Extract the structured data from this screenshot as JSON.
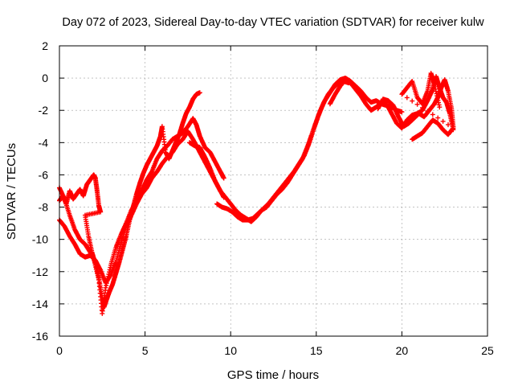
{
  "chart_data": {
    "type": "scatter",
    "title": "Day 072 of 2023, Sidereal Day-to-day VTEC variation (SDTVAR) for receiver kulw",
    "xlabel": "GPS time / hours",
    "ylabel": "SDTVAR / TECUs",
    "xlim": [
      0,
      25
    ],
    "ylim": [
      -16,
      2
    ],
    "x_ticks": [
      0,
      5,
      10,
      15,
      20,
      25
    ],
    "y_ticks": [
      -16,
      -14,
      -12,
      -10,
      -8,
      -6,
      -4,
      -2,
      0,
      2
    ],
    "grid": true,
    "legend": "none",
    "marker": "plus",
    "color": "#ff0000",
    "series": [
      {
        "points": [
          [
            0.0,
            -7.6
          ],
          [
            0.2,
            -7.3
          ],
          [
            0.4,
            -7.8
          ],
          [
            0.6,
            -7.0
          ],
          [
            0.8,
            -7.5
          ],
          [
            1.0,
            -7.2
          ],
          [
            1.2,
            -6.9
          ],
          [
            1.4,
            -7.3
          ],
          [
            1.6,
            -6.6
          ],
          [
            1.8,
            -6.3
          ],
          [
            2.0,
            -6.0
          ],
          [
            2.1,
            -6.2
          ],
          [
            2.2,
            -7.0
          ],
          [
            2.3,
            -7.9
          ],
          [
            2.4,
            -8.3
          ],
          [
            1.5,
            -8.5
          ],
          [
            1.7,
            -9.8
          ],
          [
            1.9,
            -10.8
          ],
          [
            2.1,
            -11.5
          ],
          [
            2.3,
            -12.4
          ],
          [
            2.5,
            -13.6
          ],
          [
            2.6,
            -14.2
          ],
          [
            2.7,
            -13.9
          ],
          [
            2.9,
            -13.3
          ],
          [
            3.1,
            -12.8
          ],
          [
            3.3,
            -12.1
          ],
          [
            3.5,
            -11.4
          ],
          [
            3.7,
            -10.6
          ],
          [
            3.9,
            -9.8
          ],
          [
            4.1,
            -8.8
          ],
          [
            4.3,
            -8.0
          ],
          [
            4.5,
            -7.2
          ],
          [
            4.7,
            -6.5
          ],
          [
            4.9,
            -5.9
          ],
          [
            5.1,
            -5.4
          ],
          [
            5.3,
            -5.0
          ],
          [
            5.5,
            -4.6
          ],
          [
            5.7,
            -4.2
          ],
          [
            5.9,
            -3.6
          ],
          [
            6.0,
            -3.0
          ],
          [
            6.2,
            -4.6
          ],
          [
            6.4,
            -5.0
          ],
          [
            6.6,
            -4.5
          ],
          [
            6.8,
            -4.0
          ],
          [
            7.0,
            -3.5
          ],
          [
            7.2,
            -2.8
          ],
          [
            7.4,
            -2.2
          ],
          [
            7.6,
            -1.8
          ],
          [
            7.8,
            -1.3
          ],
          [
            8.0,
            -1.0
          ],
          [
            8.2,
            -0.9
          ]
        ]
      },
      {
        "points": [
          [
            0.0,
            -6.8
          ],
          [
            0.3,
            -7.5
          ],
          [
            0.6,
            -8.5
          ],
          [
            0.9,
            -9.4
          ],
          [
            1.2,
            -10.0
          ],
          [
            1.5,
            -10.3
          ],
          [
            1.8,
            -10.8
          ],
          [
            2.0,
            -11.2
          ],
          [
            2.3,
            -12.5
          ],
          [
            2.5,
            -14.6
          ],
          [
            2.7,
            -13.0
          ],
          [
            3.0,
            -11.6
          ],
          [
            3.3,
            -10.5
          ],
          [
            3.6,
            -9.7
          ],
          [
            3.9,
            -9.0
          ],
          [
            4.2,
            -8.2
          ],
          [
            4.5,
            -7.6
          ],
          [
            4.8,
            -7.0
          ],
          [
            5.1,
            -6.3
          ],
          [
            5.4,
            -5.8
          ],
          [
            5.7,
            -5.0
          ],
          [
            6.0,
            -4.5
          ],
          [
            6.3,
            -4.2
          ],
          [
            6.6,
            -3.8
          ],
          [
            6.9,
            -3.6
          ],
          [
            7.2,
            -3.4
          ],
          [
            7.5,
            -3.0
          ],
          [
            7.8,
            -2.5
          ],
          [
            8.0,
            -2.9
          ],
          [
            8.2,
            -3.6
          ],
          [
            8.5,
            -4.3
          ],
          [
            8.8,
            -4.6
          ],
          [
            9.1,
            -5.2
          ],
          [
            9.4,
            -5.8
          ],
          [
            9.6,
            -6.2
          ]
        ]
      },
      {
        "points": [
          [
            0.0,
            -8.8
          ],
          [
            0.3,
            -9.2
          ],
          [
            0.6,
            -9.8
          ],
          [
            0.9,
            -10.3
          ],
          [
            1.2,
            -10.9
          ],
          [
            1.5,
            -11.1
          ],
          [
            1.8,
            -11.0
          ],
          [
            2.1,
            -11.3
          ],
          [
            2.4,
            -11.9
          ],
          [
            2.7,
            -12.7
          ],
          [
            3.0,
            -12.2
          ],
          [
            3.3,
            -11.4
          ],
          [
            3.6,
            -10.2
          ],
          [
            3.9,
            -9.2
          ],
          [
            4.2,
            -8.5
          ],
          [
            4.5,
            -7.8
          ],
          [
            4.8,
            -7.2
          ],
          [
            5.1,
            -6.8
          ],
          [
            5.4,
            -6.2
          ],
          [
            5.7,
            -5.8
          ],
          [
            6.0,
            -5.3
          ],
          [
            6.3,
            -4.9
          ],
          [
            6.6,
            -4.6
          ],
          [
            6.9,
            -4.1
          ],
          [
            7.2,
            -3.8
          ],
          [
            7.5,
            -3.3
          ],
          [
            7.8,
            -3.8
          ],
          [
            8.1,
            -4.4
          ],
          [
            8.4,
            -5.0
          ],
          [
            8.7,
            -5.6
          ],
          [
            9.0,
            -6.2
          ],
          [
            9.3,
            -6.8
          ],
          [
            9.6,
            -7.4
          ]
        ]
      },
      {
        "points": [
          [
            7.6,
            -4.0
          ],
          [
            7.9,
            -4.2
          ],
          [
            8.2,
            -4.3
          ],
          [
            8.5,
            -4.9
          ],
          [
            8.8,
            -5.6
          ],
          [
            9.1,
            -6.4
          ],
          [
            9.4,
            -7.0
          ],
          [
            9.7,
            -7.4
          ],
          [
            10.0,
            -7.8
          ],
          [
            10.3,
            -8.2
          ],
          [
            10.6,
            -8.5
          ],
          [
            10.9,
            -8.7
          ],
          [
            11.2,
            -8.9
          ],
          [
            11.5,
            -8.6
          ],
          [
            11.8,
            -8.2
          ],
          [
            12.1,
            -8.0
          ],
          [
            12.4,
            -7.6
          ],
          [
            12.7,
            -7.2
          ],
          [
            13.0,
            -6.9
          ],
          [
            13.3,
            -6.5
          ],
          [
            13.6,
            -6.0
          ],
          [
            13.9,
            -5.5
          ],
          [
            14.2,
            -5.0
          ],
          [
            14.5,
            -4.2
          ],
          [
            14.8,
            -3.3
          ],
          [
            15.1,
            -2.4
          ],
          [
            15.4,
            -1.6
          ],
          [
            15.7,
            -1.0
          ],
          [
            16.0,
            -0.6
          ],
          [
            16.3,
            -0.3
          ],
          [
            16.6,
            -0.2
          ],
          [
            16.9,
            -0.3
          ]
        ]
      },
      {
        "points": [
          [
            9.2,
            -7.8
          ],
          [
            9.5,
            -8.0
          ],
          [
            9.8,
            -8.1
          ],
          [
            10.1,
            -8.3
          ],
          [
            10.4,
            -8.6
          ],
          [
            10.7,
            -8.8
          ],
          [
            11.0,
            -8.8
          ],
          [
            11.3,
            -8.7
          ],
          [
            11.6,
            -8.4
          ],
          [
            11.9,
            -8.1
          ],
          [
            12.2,
            -7.8
          ],
          [
            12.5,
            -7.4
          ],
          [
            12.8,
            -7.0
          ],
          [
            13.1,
            -6.6
          ],
          [
            13.4,
            -6.2
          ],
          [
            13.7,
            -5.8
          ],
          [
            14.0,
            -5.3
          ],
          [
            14.3,
            -4.8
          ],
          [
            14.6,
            -4.0
          ],
          [
            14.9,
            -3.0
          ],
          [
            15.2,
            -2.1
          ],
          [
            15.5,
            -1.4
          ],
          [
            15.8,
            -0.9
          ],
          [
            16.1,
            -0.4
          ],
          [
            16.4,
            -0.1
          ],
          [
            16.7,
            0.0
          ],
          [
            17.0,
            -0.2
          ],
          [
            17.3,
            -0.5
          ],
          [
            17.6,
            -0.8
          ],
          [
            17.9,
            -1.2
          ],
          [
            18.2,
            -1.5
          ],
          [
            18.5,
            -1.4
          ],
          [
            18.8,
            -1.6
          ],
          [
            19.1,
            -1.7
          ],
          [
            19.4,
            -1.8
          ],
          [
            19.7,
            -2.0
          ],
          [
            20.0,
            -2.1
          ]
        ]
      },
      {
        "points": [
          [
            15.8,
            -1.6
          ],
          [
            16.1,
            -1.0
          ],
          [
            16.4,
            -0.5
          ],
          [
            16.7,
            -0.1
          ],
          [
            17.0,
            -0.3
          ],
          [
            17.3,
            -0.7
          ],
          [
            17.6,
            -1.1
          ],
          [
            17.9,
            -1.6
          ],
          [
            18.2,
            -2.0
          ],
          [
            18.5,
            -1.8
          ],
          [
            18.8,
            -1.5
          ],
          [
            19.1,
            -1.6
          ],
          [
            19.4,
            -2.2
          ],
          [
            19.7,
            -2.8
          ],
          [
            20.0,
            -3.1
          ],
          [
            20.3,
            -2.6
          ],
          [
            20.6,
            -2.3
          ],
          [
            20.9,
            -2.2
          ],
          [
            21.2,
            -2.0
          ],
          [
            21.5,
            -1.4
          ],
          [
            21.8,
            -0.7
          ],
          [
            22.0,
            0.1
          ],
          [
            22.2,
            -0.6
          ],
          [
            22.4,
            -1.2
          ],
          [
            22.6,
            -1.5
          ],
          [
            22.8,
            -2.2
          ],
          [
            23.0,
            -3.2
          ]
        ]
      },
      {
        "points": [
          [
            18.6,
            -1.9
          ],
          [
            18.9,
            -1.3
          ],
          [
            19.2,
            -1.4
          ],
          [
            19.5,
            -1.7
          ],
          [
            19.8,
            -2.4
          ],
          [
            20.1,
            -3.0
          ],
          [
            20.4,
            -2.8
          ],
          [
            20.7,
            -2.5
          ],
          [
            21.0,
            -2.2
          ],
          [
            21.3,
            -2.4
          ],
          [
            21.6,
            -2.0
          ],
          [
            21.9,
            -1.6
          ],
          [
            22.1,
            -1.2
          ],
          [
            22.3,
            -0.6
          ],
          [
            22.5,
            -0.1
          ],
          [
            22.7,
            -0.8
          ],
          [
            22.9,
            -1.9
          ],
          [
            23.0,
            -3.0
          ]
        ]
      },
      {
        "points": [
          [
            20.6,
            -3.8
          ],
          [
            20.9,
            -3.6
          ],
          [
            21.2,
            -3.4
          ],
          [
            21.5,
            -3.0
          ],
          [
            21.8,
            -2.6
          ],
          [
            22.1,
            -2.8
          ],
          [
            22.4,
            -3.2
          ],
          [
            22.7,
            -3.5
          ],
          [
            23.0,
            -3.1
          ],
          [
            20.0,
            -1.0
          ],
          [
            20.3,
            -0.6
          ],
          [
            20.6,
            -0.2
          ],
          [
            20.9,
            -1.2
          ],
          [
            21.2,
            -1.6
          ],
          [
            21.5,
            -0.8
          ],
          [
            21.7,
            0.3
          ],
          [
            21.9,
            -0.4
          ],
          [
            22.2,
            -1.8
          ]
        ]
      }
    ]
  }
}
